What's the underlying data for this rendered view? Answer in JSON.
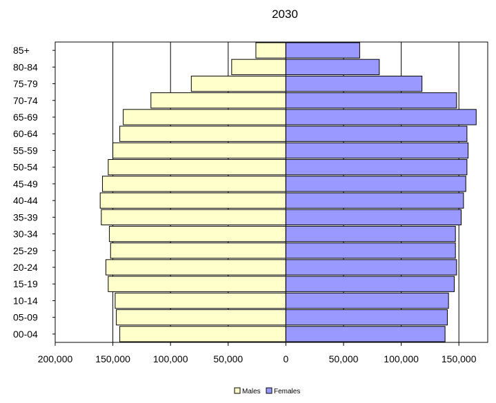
{
  "chart_data": {
    "type": "bar",
    "orientation": "horizontal-population-pyramid",
    "title": "2030",
    "categories": [
      "00-04",
      "05-09",
      "10-14",
      "15-19",
      "20-24",
      "25-29",
      "30-34",
      "35-39",
      "40-44",
      "45-49",
      "50-54",
      "55-59",
      "60-64",
      "65-69",
      "70-74",
      "75-79",
      "80-84",
      "85+"
    ],
    "series": [
      {
        "name": "Males",
        "color": "#ffffcc",
        "values": [
          144000,
          147000,
          148000,
          154000,
          156000,
          152000,
          153000,
          160000,
          161000,
          159000,
          154000,
          150000,
          144000,
          141000,
          117000,
          82000,
          47000,
          26000
        ]
      },
      {
        "name": "Females",
        "color": "#9999ff",
        "values": [
          138000,
          140000,
          141000,
          146000,
          148000,
          147000,
          147000,
          152000,
          154000,
          156000,
          157000,
          158000,
          157000,
          165000,
          148000,
          118000,
          81000,
          64000
        ]
      }
    ],
    "x_ticks": [
      "200,000",
      "150,000",
      "100,000",
      "50,000",
      "0",
      "50,000",
      "100,000",
      "150,000"
    ],
    "xlim": [
      -200000,
      175000
    ],
    "grid": "vertical",
    "legend": "bottom"
  }
}
